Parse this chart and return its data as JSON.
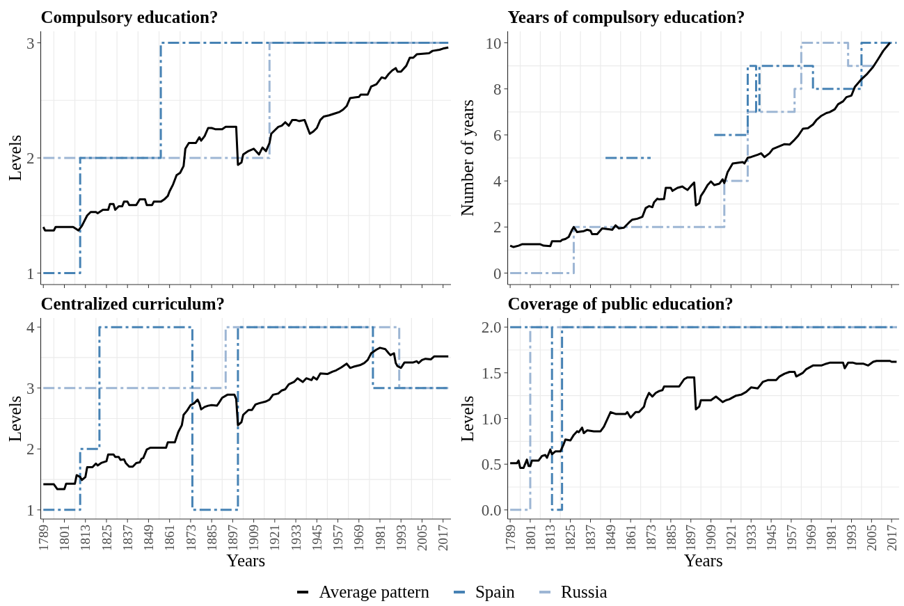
{
  "chart_data": [
    {
      "type": "line",
      "title": "Compulsory education?",
      "ylabel": "Levels",
      "xlim": [
        1787.5,
        2021.5
      ],
      "ylim": [
        0.9,
        3.1
      ],
      "xticks": [
        1789,
        1801,
        1813,
        1825,
        1837,
        1849,
        1861,
        1873,
        1885,
        1897,
        1909,
        1921,
        1933,
        1945,
        1957,
        1969,
        1981,
        1993,
        2005,
        2017
      ],
      "yticks": [
        1,
        2,
        3
      ],
      "grid": true,
      "tick_labels": "y",
      "series": [
        {
          "type": "line",
          "color": "#000000",
          "line_style": "solid",
          "x": [
            1789,
            1790,
            1795,
            1796,
            1806,
            1808,
            1809,
            1811,
            1812,
            1814,
            1816,
            1819,
            1820,
            1823,
            1826,
            1827,
            1829,
            1830,
            1832,
            1834,
            1835,
            1837,
            1838,
            1842,
            1844,
            1847,
            1848,
            1851,
            1852,
            1856,
            1858,
            1860,
            1861,
            1863,
            1865,
            1867,
            1869,
            1870,
            1872,
            1876,
            1878,
            1879,
            1881,
            1883,
            1885,
            1887,
            1891,
            1893,
            1899,
            1900,
            1902,
            1903,
            1906,
            1909,
            1912,
            1914,
            1916,
            1918,
            1919,
            1921,
            1923,
            1925,
            1927,
            1929,
            1931,
            1933,
            1935,
            1938,
            1941,
            1943,
            1945,
            1947,
            1949,
            1952,
            1956,
            1958,
            1960,
            1962,
            1964,
            1969,
            1970,
            1974,
            1976,
            1979,
            1982,
            1984,
            1986,
            1988,
            1990,
            1991,
            1993,
            1996,
            1998,
            2000,
            2002,
            2009,
            2011,
            2015,
            2017,
            2020
          ],
          "values": [
            1.4,
            1.37,
            1.37,
            1.4,
            1.4,
            1.38,
            1.37,
            1.41,
            1.44,
            1.5,
            1.53,
            1.53,
            1.52,
            1.55,
            1.55,
            1.6,
            1.6,
            1.55,
            1.58,
            1.58,
            1.62,
            1.62,
            1.59,
            1.59,
            1.64,
            1.64,
            1.59,
            1.59,
            1.62,
            1.62,
            1.64,
            1.67,
            1.71,
            1.77,
            1.85,
            1.87,
            1.93,
            2.08,
            2.13,
            2.13,
            2.18,
            2.15,
            2.19,
            2.26,
            2.26,
            2.25,
            2.25,
            2.27,
            2.27,
            1.94,
            1.96,
            2.03,
            2.06,
            2.08,
            2.03,
            2.09,
            2.06,
            2.13,
            2.21,
            2.24,
            2.27,
            2.28,
            2.31,
            2.28,
            2.33,
            2.33,
            2.32,
            2.33,
            2.21,
            2.23,
            2.26,
            2.33,
            2.36,
            2.37,
            2.39,
            2.4,
            2.42,
            2.45,
            2.52,
            2.53,
            2.55,
            2.55,
            2.62,
            2.64,
            2.7,
            2.69,
            2.73,
            2.76,
            2.78,
            2.75,
            2.75,
            2.8,
            2.87,
            2.87,
            2.9,
            2.91,
            2.93,
            2.94,
            2.95,
            2.96
          ]
        },
        {
          "type": "step",
          "color": "#4682b4",
          "line_style": "dashed",
          "x": [
            1789,
            1810,
            1856,
            2020
          ],
          "values": [
            1,
            2,
            3,
            3
          ]
        },
        {
          "type": "step",
          "color": "#9db6d4",
          "line_style": "dashed",
          "x": [
            1789,
            1918,
            2020
          ],
          "values": [
            2,
            3,
            3
          ]
        }
      ]
    },
    {
      "type": "line",
      "title": "Years of compulsory education?",
      "ylabel": "Number of years",
      "xlim": [
        1787.5,
        2021.5
      ],
      "ylim": [
        -0.5,
        10.5
      ],
      "xticks": [
        1789,
        1801,
        1813,
        1825,
        1837,
        1849,
        1861,
        1873,
        1885,
        1897,
        1909,
        1921,
        1933,
        1945,
        1957,
        1969,
        1981,
        1993,
        2005,
        2017
      ],
      "yticks": [
        0,
        2,
        4,
        6,
        8,
        10
      ],
      "grid": true,
      "tick_labels": "y",
      "series": [
        {
          "type": "line",
          "color": "#000000",
          "line_style": "solid",
          "x": [
            1789,
            1791,
            1794,
            1796,
            1807,
            1809,
            1813,
            1814,
            1819,
            1820,
            1822,
            1824,
            1826,
            1827,
            1829,
            1833,
            1835,
            1837,
            1838,
            1841,
            1844,
            1848,
            1850,
            1852,
            1854,
            1857,
            1860,
            1862,
            1865,
            1868,
            1870,
            1872,
            1874,
            1875,
            1877,
            1878,
            1881,
            1882,
            1885,
            1886,
            1889,
            1892,
            1893,
            1895,
            1897,
            1899,
            1900,
            1902,
            1903,
            1905,
            1907,
            1909,
            1911,
            1914,
            1916,
            1917,
            1919,
            1920,
            1922,
            1925,
            1928,
            1929,
            1931,
            1933,
            1937,
            1939,
            1941,
            1944,
            1946,
            1950,
            1953,
            1956,
            1959,
            1961,
            1964,
            1967,
            1970,
            1972,
            1975,
            1978,
            1980,
            1983,
            1985,
            1988,
            1990,
            1993,
            1995,
            1999,
            2002,
            2006,
            2009,
            2012,
            2016
          ],
          "values": [
            1.19,
            1.13,
            1.19,
            1.25,
            1.25,
            1.19,
            1.17,
            1.38,
            1.38,
            1.44,
            1.48,
            1.57,
            1.88,
            2.0,
            1.78,
            1.82,
            1.88,
            1.84,
            1.69,
            1.69,
            1.94,
            1.9,
            1.88,
            2.07,
            1.94,
            1.97,
            2.19,
            2.32,
            2.36,
            2.44,
            2.82,
            2.91,
            2.86,
            3.07,
            3.23,
            3.2,
            3.22,
            3.7,
            3.7,
            3.57,
            3.7,
            3.76,
            3.7,
            3.61,
            3.78,
            3.93,
            2.94,
            3.03,
            3.35,
            3.57,
            3.82,
            3.98,
            3.82,
            3.88,
            4.07,
            3.91,
            4.39,
            4.51,
            4.76,
            4.79,
            4.82,
            4.76,
            5.01,
            5.04,
            5.14,
            5.2,
            5.04,
            5.2,
            5.39,
            5.51,
            5.6,
            5.58,
            5.79,
            5.95,
            6.27,
            6.29,
            6.45,
            6.64,
            6.83,
            6.95,
            6.99,
            7.11,
            7.33,
            7.46,
            7.64,
            7.71,
            8.08,
            8.42,
            8.62,
            8.96,
            9.3,
            9.65,
            10.0
          ]
        },
        {
          "type": "step",
          "color": "#4682b4",
          "line_style": "dashed",
          "x": [
            1846,
            1873,
            1874,
            1911,
            1931,
            1936,
            1938,
            1970,
            1999,
            2020
          ],
          "values": [
            5,
            5,
            null,
            6,
            9,
            7,
            9,
            8,
            10,
            10
          ]
        },
        {
          "type": "step",
          "color": "#9db6d4",
          "line_style": "dashed",
          "x": [
            1789,
            1827,
            1917,
            1931,
            1959,
            1963,
            1991,
            2007
          ],
          "values": [
            0,
            2,
            4,
            7,
            8,
            10,
            9,
            9
          ]
        }
      ]
    },
    {
      "type": "line",
      "title": "Centralized curriculum?",
      "xlabel": "Years",
      "ylabel": "Levels",
      "xlim": [
        1787.5,
        2021.5
      ],
      "ylim": [
        0.85,
        4.15
      ],
      "xticks": [
        1789,
        1801,
        1813,
        1825,
        1837,
        1849,
        1861,
        1873,
        1885,
        1897,
        1909,
        1921,
        1933,
        1945,
        1957,
        1969,
        1981,
        1993,
        2005,
        2017
      ],
      "yticks": [
        1,
        2,
        3,
        4
      ],
      "grid": true,
      "series": [
        {
          "type": "line",
          "color": "#000000",
          "line_style": "solid",
          "x": [
            1789,
            1795,
            1797,
            1801,
            1802,
            1807,
            1808,
            1810,
            1811,
            1813,
            1814,
            1817,
            1819,
            1820,
            1822,
            1825,
            1826,
            1829,
            1830,
            1832,
            1833,
            1835,
            1836,
            1838,
            1840,
            1842,
            1844,
            1845,
            1846,
            1848,
            1850,
            1859,
            1860,
            1864,
            1866,
            1868,
            1869,
            1871,
            1873,
            1875,
            1877,
            1878,
            1879,
            1881,
            1883,
            1885,
            1888,
            1889,
            1891,
            1894,
            1898,
            1899,
            1900,
            1902,
            1903,
            1906,
            1908,
            1910,
            1912,
            1916,
            1918,
            1920,
            1923,
            1925,
            1927,
            1929,
            1932,
            1934,
            1937,
            1939,
            1942,
            1943,
            1945,
            1947,
            1951,
            1954,
            1956,
            1959,
            1962,
            1964,
            1966,
            1970,
            1972,
            1974,
            1976,
            1979,
            1981,
            1984,
            1986,
            1987,
            1989,
            1990,
            1991,
            1993,
            1995,
            2000,
            2002,
            2003,
            2005,
            2007,
            2010,
            2012,
            2020
          ],
          "values": [
            1.42,
            1.42,
            1.34,
            1.34,
            1.43,
            1.43,
            1.57,
            1.54,
            1.49,
            1.54,
            1.7,
            1.7,
            1.76,
            1.73,
            1.77,
            1.8,
            1.91,
            1.91,
            1.87,
            1.87,
            1.82,
            1.83,
            1.77,
            1.71,
            1.71,
            1.77,
            1.78,
            1.84,
            1.85,
            1.99,
            2.02,
            2.02,
            2.11,
            2.11,
            2.28,
            2.39,
            2.56,
            2.63,
            2.72,
            2.75,
            2.81,
            2.75,
            2.65,
            2.69,
            2.71,
            2.72,
            2.71,
            2.75,
            2.84,
            2.89,
            2.89,
            2.82,
            2.39,
            2.44,
            2.56,
            2.64,
            2.64,
            2.73,
            2.75,
            2.78,
            2.81,
            2.89,
            2.91,
            2.96,
            2.98,
            3.06,
            3.1,
            3.16,
            3.1,
            3.16,
            3.13,
            3.18,
            3.14,
            3.24,
            3.23,
            3.27,
            3.29,
            3.34,
            3.4,
            3.33,
            3.35,
            3.38,
            3.41,
            3.46,
            3.57,
            3.63,
            3.66,
            3.64,
            3.57,
            3.54,
            3.57,
            3.41,
            3.36,
            3.33,
            3.42,
            3.42,
            3.44,
            3.41,
            3.46,
            3.48,
            3.47,
            3.52,
            3.52
          ]
        },
        {
          "type": "step",
          "color": "#4682b4",
          "line_style": "dashed",
          "x": [
            1789,
            1810,
            1821,
            1874,
            1900,
            1977,
            2020
          ],
          "values": [
            1,
            2,
            4,
            1,
            4,
            3,
            3
          ]
        },
        {
          "type": "step",
          "color": "#9db6d4",
          "line_style": "dashed",
          "x": [
            1789,
            1893,
            1992,
            2020
          ],
          "values": [
            3,
            4,
            3,
            3
          ]
        }
      ]
    },
    {
      "type": "line",
      "title": "Coverage of public education?",
      "xlabel": "Years",
      "ylabel": "Levels",
      "xlim": [
        1787.5,
        2021.5
      ],
      "ylim": [
        -0.1,
        2.1
      ],
      "xticks": [
        1789,
        1801,
        1813,
        1825,
        1837,
        1849,
        1861,
        1873,
        1885,
        1897,
        1909,
        1921,
        1933,
        1945,
        1957,
        1969,
        1981,
        1993,
        2005,
        2017
      ],
      "yticks": [
        {
          "value": 0,
          "label": "0.0"
        },
        0.5,
        {
          "value": 1,
          "label": "1.0"
        },
        1.5,
        {
          "value": 2,
          "label": "2.0"
        }
      ],
      "grid": true,
      "legend": "bottom",
      "series": [
        {
          "type": "line",
          "name": "Average pattern",
          "color": "#000000",
          "line_style": "solid",
          "x": [
            1789,
            1793,
            1794,
            1795,
            1797,
            1799,
            1800,
            1801,
            1802,
            1806,
            1808,
            1810,
            1811,
            1813,
            1814,
            1816,
            1819,
            1821,
            1822,
            1825,
            1827,
            1829,
            1830,
            1832,
            1833,
            1835,
            1839,
            1843,
            1845,
            1847,
            1849,
            1852,
            1858,
            1859,
            1861,
            1864,
            1866,
            1869,
            1870,
            1872,
            1874,
            1876,
            1878,
            1880,
            1881,
            1890,
            1893,
            1895,
            1899,
            1900,
            1902,
            1903,
            1909,
            1912,
            1914,
            1916,
            1918,
            1920,
            1924,
            1927,
            1930,
            1933,
            1937,
            1940,
            1943,
            1948,
            1950,
            1953,
            1956,
            1959,
            1960,
            1964,
            1966,
            1970,
            1975,
            1978,
            1980,
            1988,
            1989,
            1991,
            1994,
            1996,
            2000,
            2003,
            2006,
            2008,
            2016,
            2017,
            2020
          ],
          "values": [
            0.51,
            0.51,
            0.54,
            0.46,
            0.46,
            0.55,
            0.48,
            0.48,
            0.54,
            0.54,
            0.59,
            0.6,
            0.57,
            0.66,
            0.61,
            0.64,
            0.64,
            0.72,
            0.77,
            0.76,
            0.82,
            0.86,
            0.85,
            0.9,
            0.84,
            0.87,
            0.86,
            0.86,
            0.91,
            0.99,
            1.07,
            1.05,
            1.05,
            1.07,
            1.01,
            1.07,
            1.07,
            1.13,
            1.2,
            1.28,
            1.24,
            1.28,
            1.3,
            1.31,
            1.35,
            1.35,
            1.43,
            1.45,
            1.45,
            1.1,
            1.13,
            1.2,
            1.2,
            1.24,
            1.21,
            1.18,
            1.2,
            1.21,
            1.25,
            1.26,
            1.29,
            1.34,
            1.33,
            1.4,
            1.42,
            1.42,
            1.46,
            1.49,
            1.51,
            1.51,
            1.46,
            1.5,
            1.54,
            1.58,
            1.58,
            1.6,
            1.61,
            1.61,
            1.55,
            1.61,
            1.61,
            1.6,
            1.6,
            1.58,
            1.62,
            1.63,
            1.63,
            1.62,
            1.62
          ]
        },
        {
          "type": "step",
          "name": "Spain",
          "color": "#4682b4",
          "line_style": "dashed",
          "x": [
            1789,
            1814,
            1820,
            2020
          ],
          "values": [
            2,
            0,
            2,
            2
          ]
        },
        {
          "type": "step",
          "name": "Russia",
          "color": "#9db6d4",
          "line_style": "dashed",
          "x": [
            1789,
            1801,
            2020
          ],
          "values": [
            0,
            2,
            2
          ]
        }
      ]
    }
  ]
}
